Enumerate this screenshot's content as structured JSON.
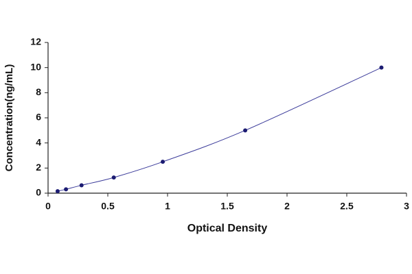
{
  "chart_data": {
    "type": "scatter",
    "x_label": "Optical Density",
    "y_label": "Concentration(ng/mL)",
    "x": [
      0.08,
      0.15,
      0.28,
      0.55,
      0.96,
      1.65,
      2.79
    ],
    "series": [
      {
        "color": "#1c1c72",
        "values": [
          0.16,
          0.31,
          0.63,
          1.25,
          2.5,
          5,
          10
        ]
      }
    ],
    "line_color": "#3b3b9a",
    "xlim": [
      0,
      3
    ],
    "xticks": [
      0,
      0.5,
      1,
      1.5,
      2,
      2.5,
      3
    ],
    "ylim": [
      0,
      12
    ],
    "yticks": [
      0,
      2,
      4,
      6,
      8,
      10,
      12
    ],
    "grid": false
  }
}
